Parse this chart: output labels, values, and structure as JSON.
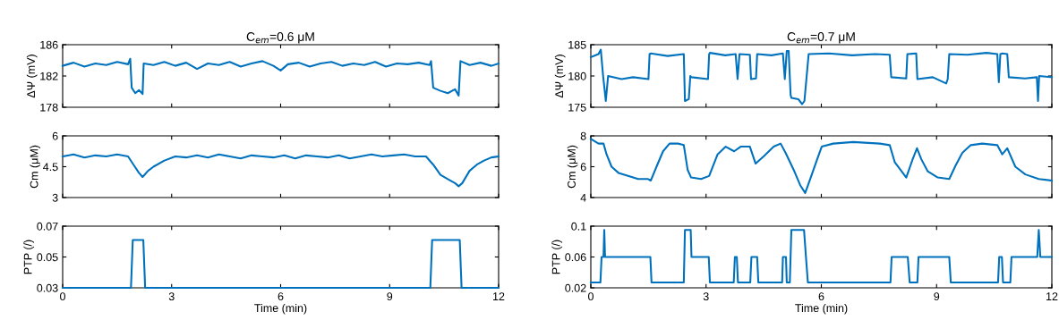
{
  "chart_data": [
    {
      "type": "line",
      "title": "C$_{em}$=0.6 μM",
      "ylabel": "ΔΨ (mV)",
      "xlim": [
        0,
        12
      ],
      "ylim": [
        178,
        186
      ],
      "xticks": [
        0,
        3,
        6,
        9,
        12
      ],
      "yticks": [
        178,
        182,
        186
      ],
      "tick_labels": "y",
      "grid": false,
      "x": [
        0,
        0.3,
        0.6,
        0.9,
        1.2,
        1.5,
        1.8,
        1.86,
        1.9,
        2.0,
        2.1,
        2.2,
        2.23,
        2.5,
        2.8,
        3.1,
        3.4,
        3.7,
        4.0,
        4.3,
        4.6,
        4.9,
        5.2,
        5.5,
        5.8,
        6.0,
        6.2,
        6.5,
        6.8,
        7.1,
        7.4,
        7.7,
        8.0,
        8.3,
        8.6,
        8.9,
        9.2,
        9.5,
        9.8,
        10.1,
        10.14,
        10.2,
        10.4,
        10.6,
        10.8,
        10.9,
        10.95,
        11.2,
        11.5,
        11.8,
        12
      ],
      "series": [
        {
          "color": "#0072bd",
          "values": [
            183.3,
            183.7,
            183.2,
            183.6,
            183.4,
            183.8,
            183.5,
            184.2,
            180.5,
            179.8,
            180.2,
            179.7,
            183.6,
            183.4,
            183.8,
            183.3,
            183.7,
            182.9,
            183.6,
            183.4,
            183.8,
            183.2,
            183.6,
            183.9,
            183.3,
            182.7,
            183.5,
            183.7,
            183.2,
            183.6,
            183.8,
            183.3,
            183.6,
            183.4,
            183.8,
            183.2,
            183.6,
            183.5,
            183.7,
            183.4,
            183.9,
            180.5,
            180.1,
            179.8,
            180.3,
            179.5,
            183.9,
            183.4,
            183.7,
            183.3,
            183.6
          ]
        }
      ]
    },
    {
      "type": "line",
      "title": "C$_{em}$=0.7 μM",
      "ylabel": "ΔΨ (mV)",
      "xlim": [
        0,
        12
      ],
      "ylim": [
        175,
        185
      ],
      "xticks": [
        0,
        3,
        6,
        9,
        12
      ],
      "yticks": [
        175,
        180,
        185
      ],
      "tick_labels": "y",
      "grid": false,
      "x": [
        0,
        0.2,
        0.26,
        0.32,
        0.39,
        0.45,
        0.8,
        1.1,
        1.5,
        1.53,
        1.56,
        2.0,
        2.42,
        2.45,
        2.55,
        2.59,
        2.62,
        3.05,
        3.08,
        3.1,
        3.5,
        3.77,
        3.82,
        3.87,
        4.14,
        4.17,
        4.3,
        4.33,
        4.7,
        5.0,
        5.05,
        5.1,
        5.15,
        5.2,
        5.22,
        5.4,
        5.5,
        5.56,
        5.67,
        6.2,
        6.8,
        7.4,
        7.78,
        7.82,
        8.21,
        8.24,
        8.47,
        8.5,
        8.9,
        9.25,
        9.29,
        9.33,
        9.8,
        10.3,
        10.58,
        10.62,
        10.66,
        10.71,
        10.84,
        10.88,
        11.3,
        11.61,
        11.64,
        11.67,
        12
      ],
      "series": [
        {
          "color": "#0072bd",
          "values": [
            183.0,
            183.5,
            184.2,
            180.0,
            176.0,
            180.0,
            179.5,
            179.8,
            179.5,
            183.5,
            183.6,
            183.2,
            183.5,
            176.0,
            176.3,
            180.0,
            179.8,
            179.5,
            183.5,
            183.7,
            183.3,
            183.5,
            179.5,
            183.5,
            183.4,
            179.5,
            179.6,
            183.5,
            183.3,
            183.6,
            179.5,
            184.0,
            184.0,
            177.0,
            176.5,
            176.3,
            175.5,
            176.0,
            183.5,
            183.6,
            183.3,
            183.5,
            183.4,
            179.8,
            179.6,
            183.5,
            183.6,
            179.5,
            179.8,
            178.8,
            179.5,
            183.5,
            183.4,
            183.7,
            183.5,
            179.0,
            183.5,
            183.6,
            183.5,
            179.8,
            179.6,
            179.8,
            176.0,
            180.0,
            179.8
          ]
        }
      ]
    },
    {
      "type": "line",
      "ylabel": "Cm (μM)",
      "xlim": [
        0,
        12
      ],
      "ylim": [
        3,
        6
      ],
      "xticks": [
        0,
        3,
        6,
        9,
        12
      ],
      "yticks": [
        3,
        4.5,
        6
      ],
      "tick_labels": "y",
      "grid": false,
      "x": [
        0,
        0.3,
        0.6,
        0.9,
        1.2,
        1.5,
        1.8,
        1.95,
        2.1,
        2.2,
        2.35,
        2.5,
        2.8,
        3.1,
        3.4,
        3.7,
        4.0,
        4.3,
        4.6,
        4.9,
        5.2,
        5.5,
        5.8,
        6.1,
        6.4,
        6.7,
        7.0,
        7.3,
        7.6,
        7.9,
        8.2,
        8.5,
        8.8,
        9.1,
        9.4,
        9.7,
        10.0,
        10.2,
        10.4,
        10.6,
        10.8,
        10.9,
        11.0,
        11.2,
        11.4,
        11.6,
        11.8,
        12
      ],
      "series": [
        {
          "color": "#0072bd",
          "values": [
            5.0,
            5.1,
            4.95,
            5.05,
            5.0,
            5.1,
            5.0,
            4.6,
            4.2,
            4.0,
            4.3,
            4.5,
            4.8,
            5.0,
            4.95,
            5.05,
            4.95,
            5.1,
            5.0,
            4.9,
            5.05,
            5.0,
            4.95,
            5.05,
            4.9,
            5.05,
            5.0,
            4.95,
            5.05,
            4.9,
            5.0,
            5.1,
            5.0,
            5.05,
            5.1,
            5.0,
            5.0,
            4.6,
            4.1,
            3.9,
            3.7,
            3.55,
            3.7,
            4.3,
            4.6,
            4.8,
            4.95,
            5.0
          ]
        }
      ]
    },
    {
      "type": "line",
      "ylabel": "Cm (μM)",
      "xlim": [
        0,
        12
      ],
      "ylim": [
        4,
        8
      ],
      "xticks": [
        0,
        3,
        6,
        9,
        12
      ],
      "yticks": [
        4,
        6,
        8
      ],
      "tick_labels": "y",
      "grid": false,
      "x": [
        0,
        0.2,
        0.33,
        0.41,
        0.54,
        0.72,
        0.97,
        1.23,
        1.49,
        1.56,
        1.71,
        1.88,
        2.05,
        2.27,
        2.42,
        2.52,
        2.61,
        2.87,
        3.08,
        3.3,
        3.51,
        3.73,
        3.9,
        4.14,
        4.29,
        4.51,
        4.76,
        4.94,
        5.07,
        5.28,
        5.45,
        5.58,
        5.71,
        5.88,
        6.01,
        6.31,
        6.83,
        7.52,
        7.78,
        7.91,
        8.12,
        8.21,
        8.38,
        8.49,
        8.6,
        8.77,
        9.03,
        9.33,
        9.5,
        9.67,
        9.89,
        10.19,
        10.58,
        10.71,
        10.84,
        11.05,
        11.31,
        11.66,
        12
      ],
      "series": [
        {
          "color": "#0072bd",
          "values": [
            7.8,
            7.5,
            7.5,
            6.8,
            6.0,
            5.6,
            5.4,
            5.2,
            5.2,
            5.1,
            6.0,
            7.0,
            7.5,
            7.5,
            7.4,
            5.8,
            5.3,
            5.2,
            5.4,
            6.8,
            7.3,
            7.0,
            7.3,
            7.3,
            6.2,
            6.7,
            7.3,
            7.5,
            6.9,
            5.8,
            4.8,
            4.3,
            5.2,
            6.4,
            7.3,
            7.5,
            7.6,
            7.5,
            7.4,
            6.3,
            5.6,
            5.3,
            6.5,
            7.2,
            6.5,
            5.7,
            5.3,
            5.2,
            6.1,
            6.9,
            7.4,
            7.5,
            7.4,
            6.8,
            7.2,
            6.0,
            5.5,
            5.2,
            5.1
          ]
        }
      ]
    },
    {
      "type": "line",
      "ylabel": "PTP (/)",
      "xlabel": "Time (min)",
      "xlim": [
        0,
        12
      ],
      "ylim": [
        0.03,
        0.07
      ],
      "xticks": [
        0,
        3,
        6,
        9,
        12
      ],
      "yticks": [
        0.03,
        0.05,
        0.07
      ],
      "grid": false,
      "x": [
        0,
        1.88,
        1.93,
        2.22,
        2.27,
        10.12,
        10.17,
        10.93,
        10.98,
        12
      ],
      "series": [
        {
          "color": "#0072bd",
          "values": [
            0.03,
            0.03,
            0.061,
            0.061,
            0.03,
            0.03,
            0.061,
            0.061,
            0.03,
            0.03
          ]
        }
      ]
    },
    {
      "type": "line",
      "ylabel": "PTP (/)",
      "xlabel": "Time (min)",
      "xlim": [
        0,
        12
      ],
      "ylim": [
        0.02,
        0.1
      ],
      "xticks": [
        0,
        3,
        6,
        9,
        12
      ],
      "yticks": [
        0.02,
        0.06,
        0.1
      ],
      "grid": false,
      "x": [
        0,
        0.25,
        0.28,
        0.33,
        0.35,
        0.37,
        0.4,
        1.55,
        1.58,
        2.42,
        2.45,
        2.6,
        2.62,
        3.07,
        3.1,
        3.72,
        3.75,
        3.8,
        3.83,
        4.15,
        4.18,
        4.33,
        4.36,
        4.98,
        5.0,
        5.08,
        5.1,
        5.18,
        5.22,
        5.55,
        5.6,
        5.65,
        7.8,
        7.83,
        8.25,
        8.3,
        8.5,
        8.53,
        9.33,
        9.37,
        10.6,
        10.63,
        10.7,
        10.73,
        10.92,
        10.95,
        11.62,
        11.66,
        11.7,
        12
      ],
      "series": [
        {
          "color": "#0072bd",
          "values": [
            0.027,
            0.027,
            0.06,
            0.06,
            0.095,
            0.06,
            0.06,
            0.06,
            0.027,
            0.027,
            0.095,
            0.095,
            0.06,
            0.06,
            0.027,
            0.027,
            0.06,
            0.06,
            0.027,
            0.027,
            0.06,
            0.06,
            0.027,
            0.027,
            0.06,
            0.06,
            0.027,
            0.027,
            0.095,
            0.095,
            0.06,
            0.027,
            0.027,
            0.06,
            0.06,
            0.027,
            0.027,
            0.06,
            0.06,
            0.027,
            0.027,
            0.06,
            0.06,
            0.027,
            0.027,
            0.06,
            0.06,
            0.095,
            0.06,
            0.06
          ]
        }
      ]
    }
  ]
}
